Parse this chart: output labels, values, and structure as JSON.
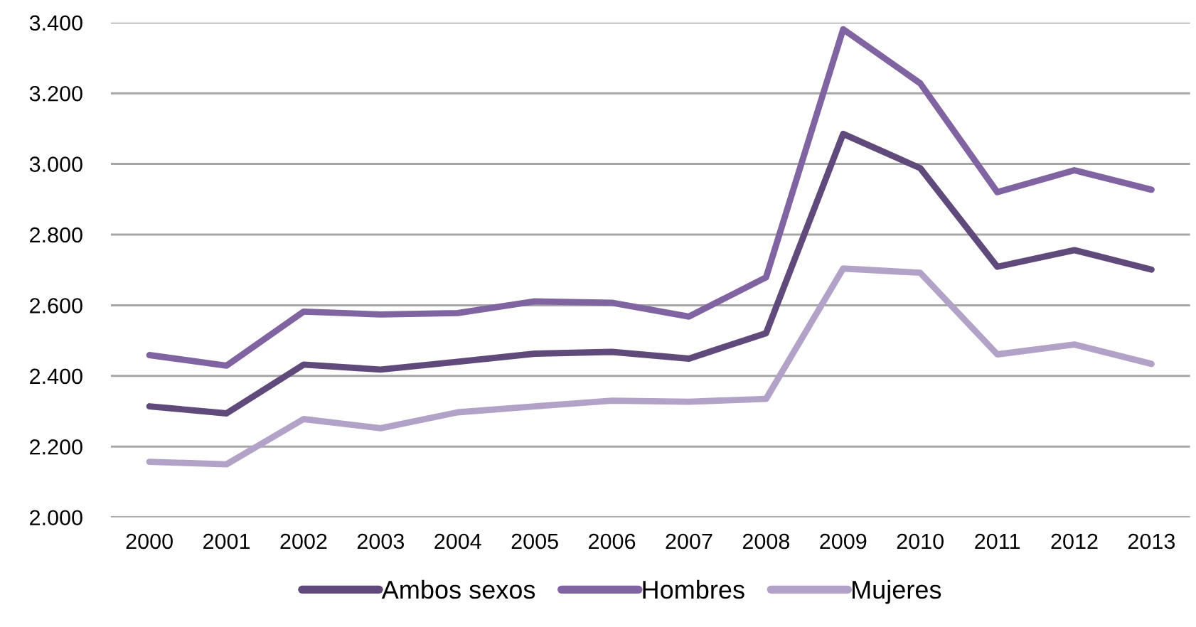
{
  "chart_data": {
    "type": "line",
    "categories": [
      "2000",
      "2001",
      "2002",
      "2003",
      "2004",
      "2005",
      "2006",
      "2007",
      "2008",
      "2009",
      "2010",
      "2011",
      "2012",
      "2013"
    ],
    "series": [
      {
        "name": "Ambos sexos",
        "color": "#604a7b",
        "values": [
          2314,
          2294,
          2432,
          2418,
          2440,
          2463,
          2468,
          2449,
          2521,
          3085,
          2988,
          2709,
          2756,
          2701
        ]
      },
      {
        "name": "Hombres",
        "color": "#8064a2",
        "values": [
          2459,
          2429,
          2582,
          2574,
          2578,
          2611,
          2607,
          2568,
          2679,
          3381,
          3228,
          2920,
          2982,
          2927
        ]
      },
      {
        "name": "Mujeres",
        "color": "#b3a2c7",
        "values": [
          2157,
          2150,
          2278,
          2252,
          2297,
          2314,
          2330,
          2327,
          2335,
          2704,
          2692,
          2461,
          2489,
          2434
        ]
      }
    ],
    "ylim": [
      2000,
      3400
    ],
    "yticks": [
      {
        "value": 2000,
        "label": "2.000"
      },
      {
        "value": 2200,
        "label": "2.200"
      },
      {
        "value": 2400,
        "label": "2.400"
      },
      {
        "value": 2600,
        "label": "2.600"
      },
      {
        "value": 2800,
        "label": "2.800"
      },
      {
        "value": 3000,
        "label": "3.000"
      },
      {
        "value": 3200,
        "label": "3.200"
      },
      {
        "value": 3400,
        "label": "3.400"
      }
    ],
    "grid": "y",
    "legend": "bottom",
    "marker": "none",
    "line_style": "solid"
  }
}
